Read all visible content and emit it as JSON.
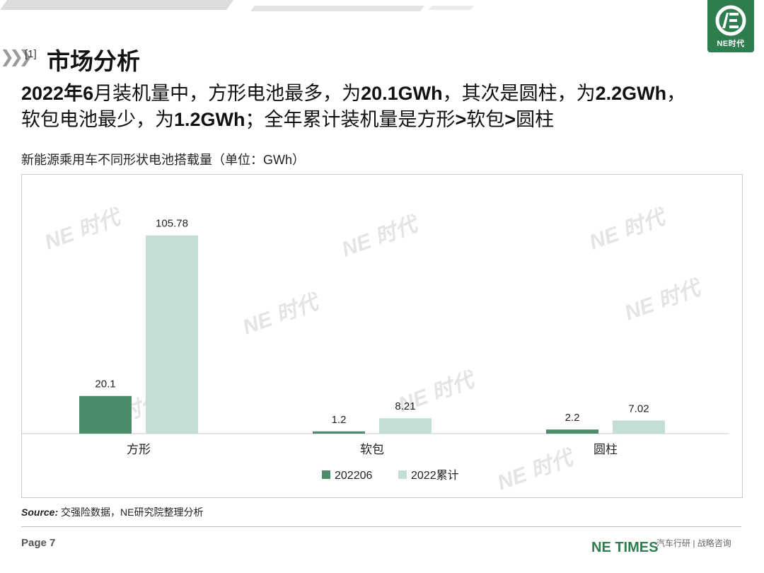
{
  "header": {
    "section_index": "[1]",
    "section_title": "市场分析",
    "logo_text": "NE时代"
  },
  "headline": {
    "l1a": "2022年",
    "l1b": "6",
    "l1c": "月装机量中，方形电池最多，为",
    "l1d": "20.1GWh",
    "l1e": "，其次是圆柱，为",
    "l1f": "2.2GWh",
    "l1g": "，",
    "l2a": "软包电池最少，为",
    "l2b": "1.2GWh",
    "l2c": "；全年累计装机量是方形",
    "l2d": ">",
    "l2e": "软包",
    "l2f": ">",
    "l2g": "圆柱"
  },
  "chart_title": "新能源乘用车不同形状电池搭载量（单位：GWh）",
  "chart_data": {
    "type": "bar",
    "categories": [
      "方形",
      "软包",
      "圆柱"
    ],
    "series": [
      {
        "name": "202206",
        "values": [
          20.1,
          1.2,
          2.2
        ],
        "color": "#4d8c6a"
      },
      {
        "name": "2022累计",
        "values": [
          105.78,
          8.21,
          7.02
        ],
        "color": "#c5ded3"
      }
    ],
    "value_labels": [
      [
        "20.1",
        "1.2",
        "2.2"
      ],
      [
        "105.78",
        "8.21",
        "7.02"
      ]
    ],
    "ylim": [
      0,
      120
    ],
    "grid": false,
    "legend": "bottom-center"
  },
  "source": {
    "label": "Source:",
    "text": " 交强险数据，NE研究院整理分析"
  },
  "footer": {
    "page": "Page 7",
    "brand": "NE TIMES",
    "tagline": "汽车行研 | 战略咨询"
  },
  "watermark_text": "NE 时代",
  "colors": {
    "brand_green": "#2e7d4f",
    "series_dark": "#4d8c6a",
    "series_light": "#c5ded3"
  }
}
